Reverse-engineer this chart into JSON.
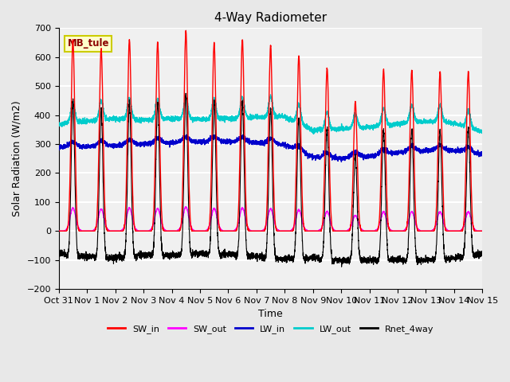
{
  "title": "4-Way Radiometer",
  "xlabel": "Time",
  "ylabel": "Solar Radiation (W/m2)",
  "ylim": [
    -200,
    700
  ],
  "yticks": [
    -200,
    -100,
    0,
    100,
    200,
    300,
    400,
    500,
    600,
    700
  ],
  "num_days": 15,
  "xtick_labels": [
    "Oct 31",
    "Nov 1",
    "Nov 2",
    "Nov 3",
    "Nov 4",
    "Nov 5",
    "Nov 6",
    "Nov 7",
    "Nov 8",
    "Nov 9",
    "Nov 10",
    "Nov 11",
    "Nov 12",
    "Nov 13",
    "Nov 14",
    "Nov 15"
  ],
  "colors": {
    "SW_in": "#ff0000",
    "SW_out": "#ff00ff",
    "LW_in": "#0000cc",
    "LW_out": "#00cccc",
    "Rnet_4way": "#000000"
  },
  "legend_labels": [
    "SW_in",
    "SW_out",
    "LW_in",
    "LW_out",
    "Rnet_4way"
  ],
  "station_label": "MB_tule",
  "station_label_color": "#8b0000",
  "station_box_facecolor": "#ffffcc",
  "station_box_edgecolor": "#cccc00",
  "background_color": "#e8e8e8",
  "plot_background": "#f0f0f0",
  "grid_color": "#ffffff",
  "SW_in_peaks": [
    660,
    630,
    660,
    650,
    690,
    650,
    660,
    640,
    605,
    560,
    445,
    555,
    555,
    550,
    550
  ],
  "LW_in_trend_x": [
    0,
    1,
    2,
    3,
    4,
    5,
    6,
    7,
    8,
    9,
    10,
    11,
    12,
    13,
    14,
    15
  ],
  "LW_in_trend_y": [
    289,
    291,
    295,
    300,
    305,
    308,
    308,
    305,
    298,
    255,
    250,
    258,
    270,
    278,
    278,
    265
  ],
  "LW_out_trend_x": [
    0,
    1,
    2,
    3,
    4,
    5,
    6,
    7,
    8,
    9,
    10,
    11,
    12,
    13,
    14,
    15
  ],
  "LW_out_trend_y": [
    368,
    378,
    388,
    382,
    388,
    385,
    388,
    392,
    395,
    348,
    352,
    358,
    370,
    378,
    372,
    342
  ]
}
